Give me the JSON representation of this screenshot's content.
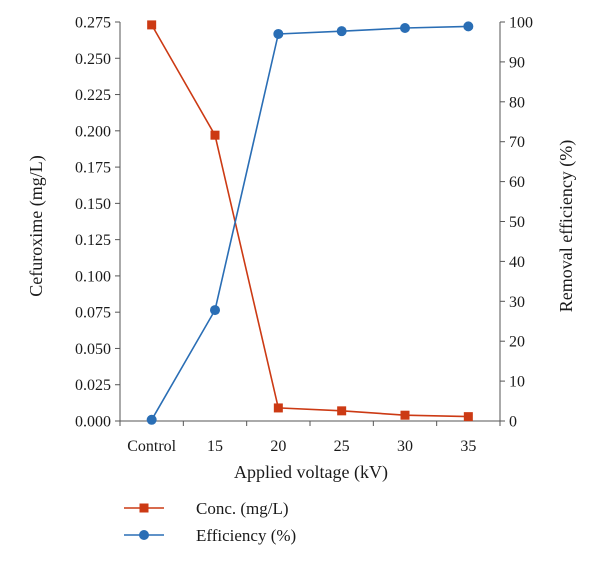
{
  "chart_data": {
    "type": "line",
    "categories": [
      "Control",
      "15",
      "20",
      "25",
      "30",
      "35"
    ],
    "xlabel": "Applied voltage (kV)",
    "ylabel_left": "Cefuroxime (mg/L)",
    "ylabel_right": "Removal efficiency (%)",
    "ylim_left": [
      0,
      0.275
    ],
    "ylim_right": [
      0,
      100
    ],
    "yticks_left": [
      "0.000",
      "0.025",
      "0.050",
      "0.075",
      "0.100",
      "0.125",
      "0.150",
      "0.175",
      "0.200",
      "0.225",
      "0.250",
      "0.275"
    ],
    "yticks_right": [
      "0",
      "10",
      "20",
      "30",
      "40",
      "50",
      "60",
      "70",
      "80",
      "90",
      "100"
    ],
    "grid": false,
    "legend_position": "bottom-left",
    "series": [
      {
        "name": "Conc. (mg/L)",
        "axis": "left",
        "color": "#cc3a14",
        "marker": "square",
        "values": [
          0.273,
          0.197,
          0.009,
          0.007,
          0.004,
          0.003
        ]
      },
      {
        "name": "Efficiency (%)",
        "axis": "right",
        "color": "#2a6eb5",
        "marker": "circle",
        "values": [
          0.3,
          27.8,
          97.0,
          97.7,
          98.5,
          98.9
        ]
      }
    ]
  }
}
